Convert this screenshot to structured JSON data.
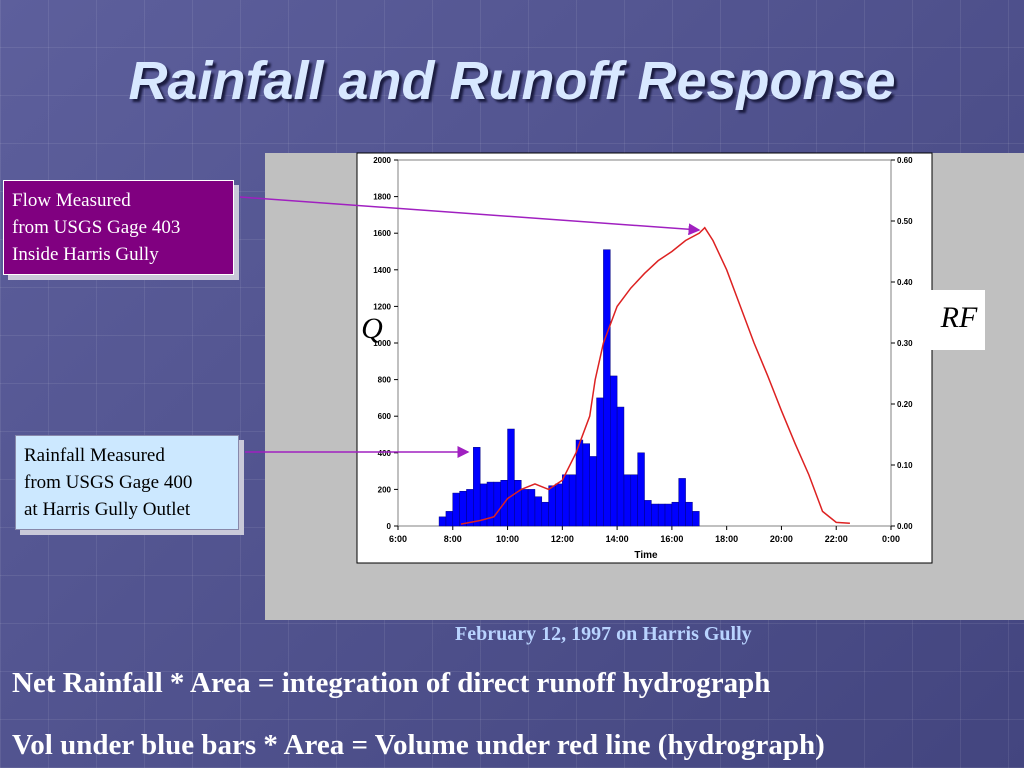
{
  "slide": {
    "title": "Rainfall and Runoff Response",
    "callout_flow": [
      "Flow Measured",
      "from USGS Gage 403",
      "Inside Harris Gully"
    ],
    "callout_rain": [
      "Rainfall Measured",
      "from USGS Gage 400",
      "at Harris Gully Outlet"
    ],
    "caption": "February 12, 1997 on Harris Gully",
    "notes": [
      "Net Rainfall * Area = integration of direct runoff hydrograph",
      "Vol under blue bars * Area = Volume under red line (hydrograph)"
    ]
  },
  "chart_data": {
    "type": "bar-line",
    "x_label": "Time",
    "y_label": "Q",
    "y2_label": "RF",
    "xlim": [
      6,
      24
    ],
    "xticks": [
      {
        "value": 6,
        "label": "6:00"
      },
      {
        "value": 8,
        "label": "8:00"
      },
      {
        "value": 10,
        "label": "10:00"
      },
      {
        "value": 12,
        "label": "12:00"
      },
      {
        "value": 14,
        "label": "14:00"
      },
      {
        "value": 16,
        "label": "16:00"
      },
      {
        "value": 18,
        "label": "18:00"
      },
      {
        "value": 20,
        "label": "20:00"
      },
      {
        "value": 22,
        "label": "22:00"
      },
      {
        "value": 24,
        "label": "0:00"
      }
    ],
    "ylim": [
      0,
      2000
    ],
    "yticks": [
      0,
      200,
      400,
      600,
      800,
      1000,
      1200,
      1400,
      1600,
      1800,
      2000
    ],
    "y2lim": [
      0,
      0.6
    ],
    "y2ticks": [
      {
        "value": 0,
        "label": "0.00"
      },
      {
        "value": 0.1,
        "label": "0.10"
      },
      {
        "value": 0.2,
        "label": "0.20"
      },
      {
        "value": 0.3,
        "label": "0.30"
      },
      {
        "value": 0.4,
        "label": "0.40"
      },
      {
        "value": 0.5,
        "label": "0.50"
      },
      {
        "value": 0.6,
        "label": "0.60"
      }
    ],
    "series": [
      {
        "type": "bar",
        "axis": "y2",
        "color": "#0000ff",
        "x": [
          7.625,
          7.875,
          8.125,
          8.375,
          8.625,
          8.875,
          9.125,
          9.375,
          9.625,
          9.875,
          10.125,
          10.375,
          10.625,
          10.875,
          11.125,
          11.375,
          11.625,
          11.875,
          12.125,
          12.375,
          12.625,
          12.875,
          13.125,
          13.375,
          13.625,
          13.875,
          14.125,
          14.375,
          14.625,
          14.875,
          15.125,
          15.375,
          15.625,
          15.875,
          16.125,
          16.375,
          16.625,
          16.875
        ],
        "values": [
          0.015,
          0.024,
          0.054,
          0.057,
          0.06,
          0.129,
          0.069,
          0.072,
          0.072,
          0.075,
          0.159,
          0.075,
          0.06,
          0.06,
          0.048,
          0.039,
          0.066,
          0.069,
          0.084,
          0.084,
          0.141,
          0.135,
          0.114,
          0.21,
          0.453,
          0.246,
          0.195,
          0.084,
          0.084,
          0.12,
          0.042,
          0.036,
          0.036,
          0.036,
          0.039,
          0.078,
          0.039,
          0.024
        ]
      },
      {
        "type": "line",
        "color": "#dd2222",
        "x": [
          8.3,
          9.0,
          9.5,
          10.0,
          10.5,
          11.0,
          11.5,
          12.0,
          12.5,
          13.0,
          13.2,
          13.5,
          14.0,
          14.5,
          15.0,
          15.5,
          16.0,
          16.5,
          17.0,
          17.2,
          17.5,
          18.0,
          18.5,
          19.0,
          19.5,
          20.0,
          20.5,
          21.0,
          21.5,
          22.0,
          22.5
        ],
        "values": [
          10,
          30,
          50,
          150,
          200,
          230,
          200,
          250,
          400,
          600,
          800,
          1000,
          1200,
          1300,
          1380,
          1450,
          1500,
          1560,
          1600,
          1630,
          1560,
          1400,
          1200,
          1000,
          820,
          630,
          450,
          280,
          80,
          20,
          15
        ]
      }
    ]
  }
}
